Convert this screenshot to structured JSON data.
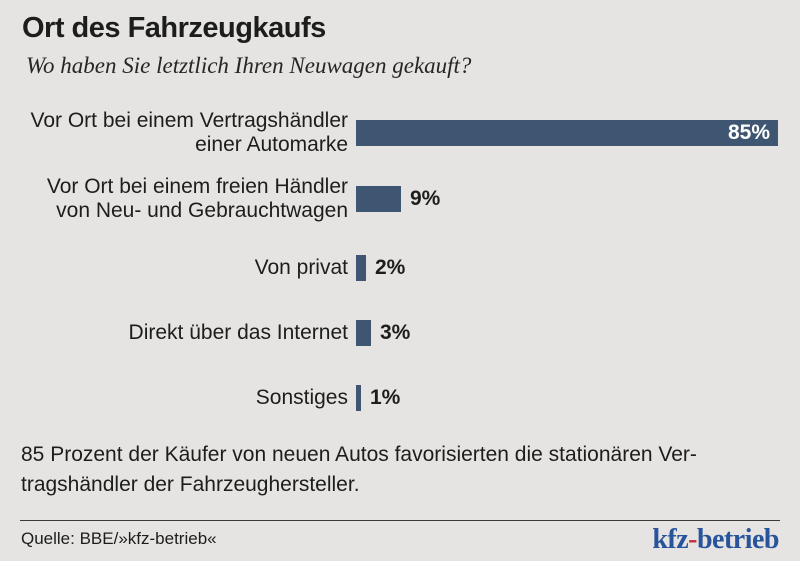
{
  "header": {
    "title": "Ort des Fahrzeugkaufs",
    "subtitle": "Wo haben Sie letztlich Ihren Neuwagen gekauft?"
  },
  "chart_data": {
    "type": "bar",
    "orientation": "horizontal",
    "title": "Ort des Fahrzeugkaufs",
    "subtitle": "Wo haben Sie letztlich Ihren Neuwagen gekauft?",
    "categories": [
      "Vor Ort bei einem Vertragshändler\neiner Automarke",
      "Vor Ort bei einem freien Händler\nvon Neu- und Gebrauchtwagen",
      "Von privat",
      "Direkt über das Internet",
      "Sonstiges"
    ],
    "values": [
      85,
      9,
      2,
      3,
      1
    ],
    "value_labels": [
      "85%",
      "9%",
      "2%",
      "3%",
      "1%"
    ],
    "unit": "percent",
    "xlim": [
      0,
      85
    ],
    "grid": false,
    "legend": false,
    "bar_color": "#3e5672",
    "value_label_inside_color": "#ffffff",
    "value_label_outside_color": "#1d1d1b"
  },
  "summary": {
    "text": "85 Prozent der Käufer von neuen Autos favorisierten die stationären Ver-\ntragshändler der Fahrzeughersteller."
  },
  "footer": {
    "source": "Quelle: BBE/»kfz-betrieb«",
    "logo": {
      "part1": "kfz",
      "hyphen": "-",
      "part2": "betrieb",
      "text_color": "#27549b",
      "hyphen_color": "#c4333b"
    }
  }
}
